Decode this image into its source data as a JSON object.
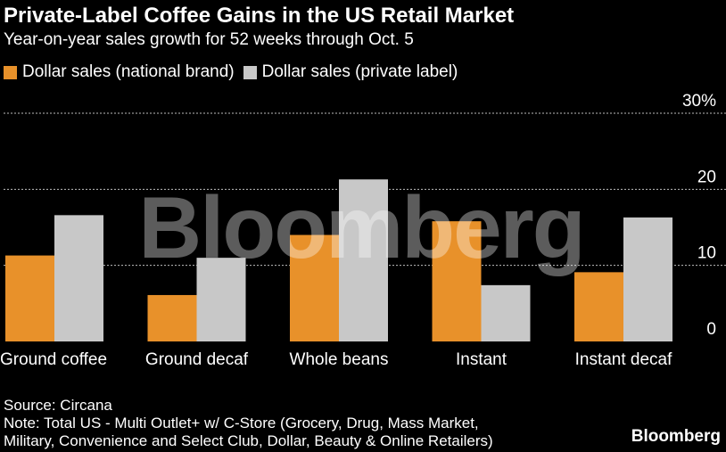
{
  "title": "Private-Label Coffee Gains in the US Retail Market",
  "subtitle": "Year-on-year sales growth for 52 weeks through Oct. 5",
  "watermark": "Bloomberg",
  "brand": "Bloomberg",
  "source": "Source: Circana",
  "note_line1": "Note: Total US - Multi Outlet+ w/ C-Store (Grocery, Drug, Mass Market,",
  "note_line2": "Military, Convenience and Select Club, Dollar, Beauty & Online Retailers)",
  "colors": {
    "national": "#E8912A",
    "private": "#C8C8C8"
  },
  "chart_data": {
    "type": "bar",
    "title": "Private-Label Coffee Gains in the US Retail Market",
    "ylabel": "",
    "xlabel": "",
    "ylim": [
      0,
      30
    ],
    "yticks": [
      0,
      10,
      20,
      30
    ],
    "ytick_labels": [
      "0",
      "10",
      "20",
      "30%"
    ],
    "categories": [
      "Ground coffee",
      "Ground decaf",
      "Whole beans",
      "Instant",
      "Instant decaf"
    ],
    "series": [
      {
        "name": "Dollar sales (national brand)",
        "values": [
          11.3,
          6.1,
          14.0,
          15.8,
          9.1
        ]
      },
      {
        "name": "Dollar sales (private label)",
        "values": [
          16.6,
          11.0,
          21.3,
          7.4,
          16.3
        ]
      }
    ],
    "legend_position": "top-left",
    "grid": true
  }
}
